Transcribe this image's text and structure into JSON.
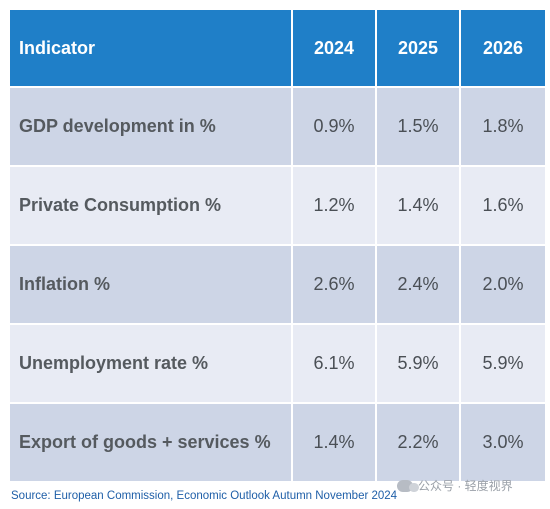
{
  "table": {
    "headers": [
      "Indicator",
      "2024",
      "2025",
      "2026"
    ],
    "rows": [
      {
        "label": "GDP development in %",
        "values": [
          "0.9%",
          "1.5%",
          "1.8%"
        ]
      },
      {
        "label": "Private Consumption %",
        "values": [
          "1.2%",
          "1.4%",
          "1.6%"
        ]
      },
      {
        "label": "Inflation %",
        "values": [
          "2.6%",
          "2.4%",
          "2.0%"
        ]
      },
      {
        "label": "Unemployment rate %",
        "values": [
          "6.1%",
          "5.9%",
          "5.9%"
        ]
      },
      {
        "label": "Export of goods + services %",
        "values": [
          "1.4%",
          "2.2%",
          "3.0%"
        ]
      }
    ]
  },
  "source": "Source: European Commission, Economic Outlook Autumn November 2024",
  "watermark": {
    "text": "公众号 · 轻度视界",
    "icon": "wechat-icon"
  },
  "colors": {
    "header_bg": "#1f7fc8",
    "row_dark": "#cdd5e6",
    "row_light": "#e8ebf4"
  }
}
